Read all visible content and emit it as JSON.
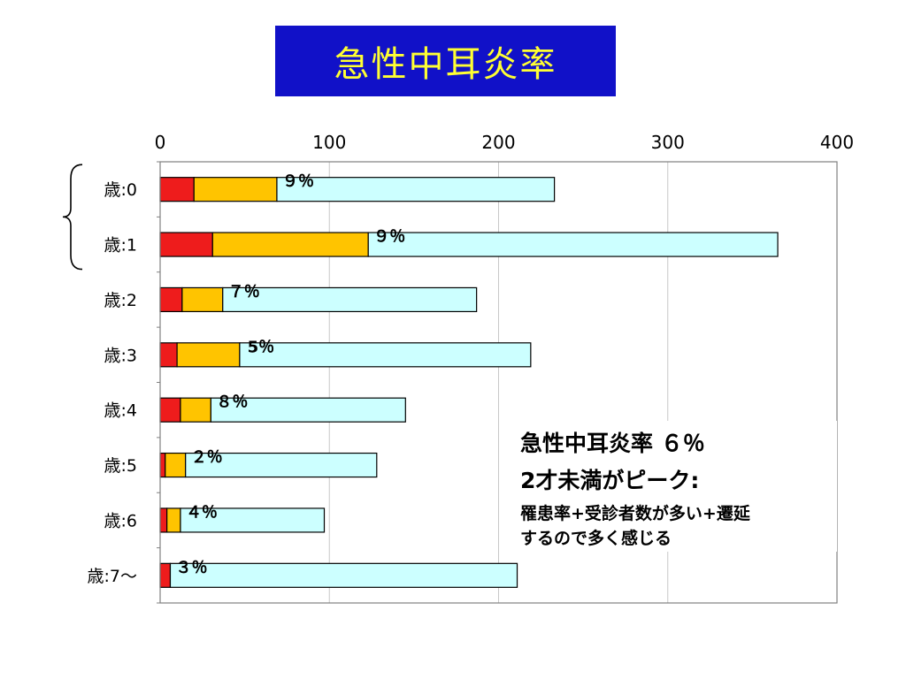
{
  "title": "急性中耳炎率",
  "annotation": {
    "line1": "急性中耳炎率 ６％",
    "line2": "2才未満がピーク:",
    "line3": "罹患率+受診者数が多い+遷延",
    "line4": "するので多く感じる"
  },
  "colors": {
    "title_bg": "#1111c8",
    "title_text": "#ffff33",
    "seg1": "#ee1c1c",
    "seg2": "#ffc400",
    "seg3": "#ccffff"
  },
  "chart_data": {
    "type": "bar",
    "orientation": "horizontal",
    "stacked": true,
    "categories": [
      "歳:0",
      "歳:1",
      "歳:2",
      "歳:3",
      "歳:4",
      "歳:5",
      "歳:6",
      "歳:7～"
    ],
    "series": [
      {
        "values": [
          20,
          31,
          13,
          10,
          12,
          3,
          4,
          6
        ]
      },
      {
        "values": [
          49,
          92,
          24,
          37,
          18,
          12,
          8,
          0
        ]
      },
      {
        "values": [
          164,
          242,
          150,
          172,
          115,
          113,
          85,
          205
        ]
      }
    ],
    "bar_labels": [
      "９％",
      "９％",
      "７％",
      "5％",
      "８％",
      "２％",
      "４％",
      "３％"
    ],
    "xlim": [
      0,
      400
    ],
    "xticks": [
      0,
      100,
      200,
      300,
      400
    ],
    "xaxis_position": "top",
    "grid": true,
    "bracket_groups": [
      [
        "歳:0",
        "歳:1"
      ]
    ]
  }
}
